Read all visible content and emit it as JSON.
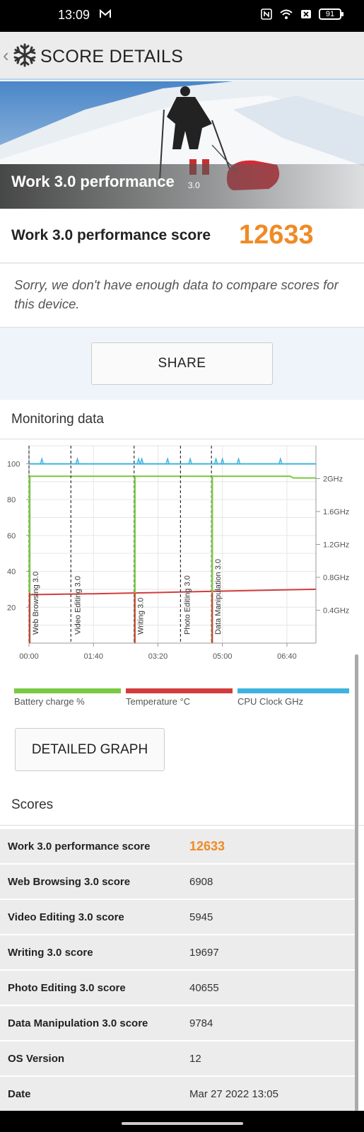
{
  "status_bar": {
    "time": "13:09",
    "battery": "91"
  },
  "header": {
    "title": "SCORE DETAILS"
  },
  "hero": {
    "title": "Work 3.0 performance",
    "version": "3.0"
  },
  "score_card": {
    "label": "Work 3.0 performance score",
    "value": "12633"
  },
  "compare": {
    "text": "Sorry, we don't have enough data to compare scores for this device."
  },
  "share": {
    "label": "SHARE"
  },
  "monitoring": {
    "title": "Monitoring data"
  },
  "chart_data": {
    "type": "line",
    "x_ticks": [
      "00:00",
      "01:40",
      "03:20",
      "05:00",
      "06:40"
    ],
    "y_left_ticks": [
      "100",
      "80",
      "60",
      "40",
      "20"
    ],
    "y_right_ticks": [
      "2GHz",
      "1.6GHz",
      "1.2GHz",
      "0.8GHz",
      "0.4GHz"
    ],
    "phases": [
      {
        "label": "Web Browsing 3.0",
        "t": 0
      },
      {
        "label": "Video Editing 3.0",
        "t": 65
      },
      {
        "label": "Writing 3.0",
        "t": 163
      },
      {
        "label": "Photo Editing 3.0",
        "t": 235
      },
      {
        "label": "Data Manipulation 3.0",
        "t": 283
      }
    ],
    "series": [
      {
        "name": "Battery charge %",
        "color": "#7ac943",
        "unit": "%",
        "values_t": [
          0,
          405,
          410,
          445
        ],
        "values": [
          93,
          93,
          92,
          92
        ]
      },
      {
        "name": "Temperature °C",
        "color": "#d23c3c",
        "unit": "°C",
        "values_t": [
          0,
          100,
          200,
          300,
          445
        ],
        "values": [
          27,
          27.5,
          28.2,
          29,
          30
        ]
      },
      {
        "name": "CPU Clock GHz",
        "color": "#3fb3e0",
        "unit": "GHz",
        "values_t": [
          0,
          445
        ],
        "values": [
          2.18,
          2.18
        ]
      }
    ],
    "x_range_seconds": [
      0,
      445
    ],
    "y_left_range": [
      0,
      110
    ]
  },
  "detailed_graph": {
    "label": "DETAILED GRAPH"
  },
  "scores": {
    "title": "Scores",
    "rows": [
      {
        "label": "Work 3.0 performance score",
        "value": "12633"
      },
      {
        "label": "Web Browsing 3.0 score",
        "value": "6908"
      },
      {
        "label": "Video Editing 3.0 score",
        "value": "5945"
      },
      {
        "label": "Writing 3.0 score",
        "value": "19697"
      },
      {
        "label": "Photo Editing 3.0 score",
        "value": "40655"
      },
      {
        "label": "Data Manipulation 3.0 score",
        "value": "9784"
      },
      {
        "label": "OS Version",
        "value": "12"
      },
      {
        "label": "Date",
        "value": "Mar 27 2022 13:05"
      }
    ]
  }
}
